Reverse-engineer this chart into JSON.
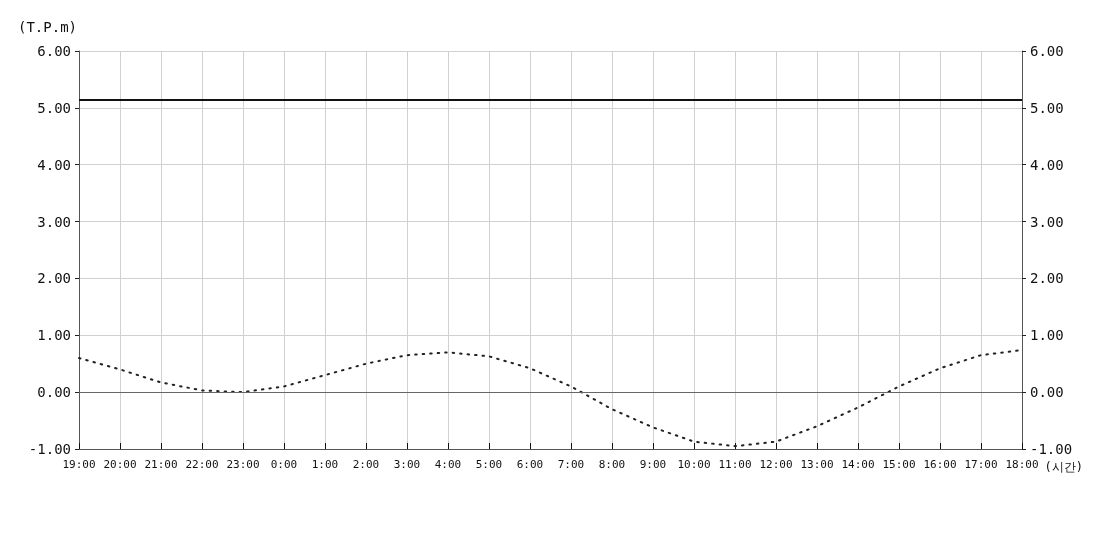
{
  "chart_data": {
    "type": "line",
    "ylabel": "(T.P.m)",
    "xlabel": "(시간)",
    "categories": [
      "19:00",
      "20:00",
      "21:00",
      "22:00",
      "23:00",
      "0:00",
      "1:00",
      "2:00",
      "3:00",
      "4:00",
      "5:00",
      "6:00",
      "7:00",
      "8:00",
      "9:00",
      "10:00",
      "11:00",
      "12:00",
      "13:00",
      "14:00",
      "15:00",
      "16:00",
      "17:00",
      "18:00"
    ],
    "series": [
      {
        "color": "#222222",
        "line_style": "dotted",
        "values": [
          0.6,
          0.4,
          0.17,
          0.03,
          0.0,
          0.1,
          0.3,
          0.5,
          0.65,
          0.7,
          0.63,
          0.42,
          0.1,
          -0.3,
          -0.62,
          -0.87,
          -0.95,
          -0.87,
          -0.6,
          -0.27,
          0.1,
          0.42,
          0.65,
          0.74
        ]
      }
    ],
    "ylim": [
      -1,
      6
    ],
    "yticks": [
      {
        "value": -1,
        "label": "-1.00"
      },
      {
        "value": 0,
        "label": "0.00"
      },
      {
        "value": 1,
        "label": "1.00"
      },
      {
        "value": 2,
        "label": "2.00"
      },
      {
        "value": 3,
        "label": "3.00"
      },
      {
        "value": 4,
        "label": "4.00"
      },
      {
        "value": 5,
        "label": "5.00"
      },
      {
        "value": 6,
        "label": "6.00"
      }
    ],
    "y2lim": [
      -1,
      6
    ],
    "y2ticks": [
      {
        "value": -1,
        "label": "-1.00"
      },
      {
        "value": 0,
        "label": "0.00"
      },
      {
        "value": 1,
        "label": "1.00"
      },
      {
        "value": 2,
        "label": "2.00"
      },
      {
        "value": 3,
        "label": "3.00"
      },
      {
        "value": 4,
        "label": "4.00"
      },
      {
        "value": 5,
        "label": "5.00"
      },
      {
        "value": 6,
        "label": "6.00"
      }
    ],
    "ref_lines": [
      {
        "axis": "y",
        "value": 5.15,
        "color": "#111111",
        "line_style": "solid"
      },
      {
        "axis": "y",
        "value": 0,
        "color": "#666666",
        "line_style": "solid"
      }
    ],
    "grid": true,
    "marker": "none"
  }
}
